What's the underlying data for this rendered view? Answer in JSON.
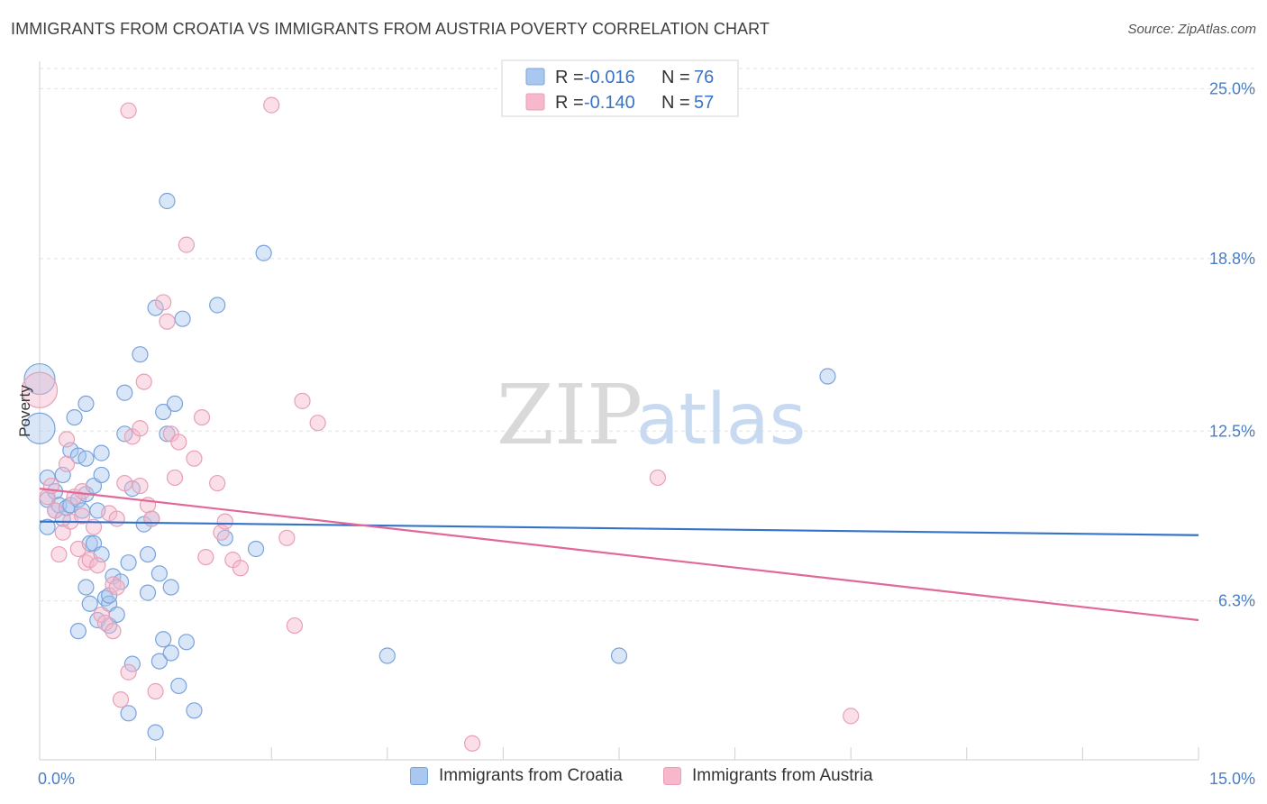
{
  "title": "IMMIGRANTS FROM CROATIA VS IMMIGRANTS FROM AUSTRIA POVERTY CORRELATION CHART",
  "source": "Source: ZipAtlas.com",
  "watermark": {
    "zip": "ZIP",
    "atlas": "atlas"
  },
  "colors": {
    "croatia_fill": "#a9c8f0",
    "croatia_stroke": "#7aa3db",
    "croatia_line": "#3573c9",
    "austria_fill": "#f7b8cb",
    "austria_stroke": "#e8a0b6",
    "austria_line": "#e0699a",
    "tick": "#4a7ec4",
    "grid": "#e3e3e3"
  },
  "legend": {
    "rows": [
      {
        "r_label": "R =",
        "r_value": "-0.016",
        "n_label": "N =",
        "n_value": "76"
      },
      {
        "r_label": "R =",
        "r_value": "-0.140",
        "n_label": "N =",
        "n_value": "57"
      }
    ]
  },
  "chart_data": {
    "type": "scatter",
    "title": "IMMIGRANTS FROM CROATIA VS IMMIGRANTS FROM AUSTRIA POVERTY CORRELATION CHART",
    "xlabel": "",
    "ylabel": "Poverty",
    "xlim": [
      0,
      15
    ],
    "ylim": [
      0.5,
      26
    ],
    "x_tick_labels": [
      "0.0%",
      "15.0%"
    ],
    "y_ticks": [
      6.3,
      12.5,
      18.8,
      25.0
    ],
    "y_tick_labels": [
      "6.3%",
      "12.5%",
      "18.8%",
      "25.0%"
    ],
    "grid": true,
    "legend_position": "top-center",
    "series": [
      {
        "name": "Immigrants from Croatia",
        "trend": {
          "x": [
            0,
            15
          ],
          "y": [
            9.2,
            8.7
          ]
        },
        "points": [
          {
            "x": 0.0,
            "y": 14.4,
            "s": 2
          },
          {
            "x": 0.0,
            "y": 12.6,
            "s": 2
          },
          {
            "x": 0.1,
            "y": 10.8
          },
          {
            "x": 0.1,
            "y": 10.0
          },
          {
            "x": 0.1,
            "y": 9.0
          },
          {
            "x": 0.2,
            "y": 10.3
          },
          {
            "x": 0.2,
            "y": 9.6
          },
          {
            "x": 0.25,
            "y": 9.8
          },
          {
            "x": 0.3,
            "y": 10.9
          },
          {
            "x": 0.3,
            "y": 9.3
          },
          {
            "x": 0.35,
            "y": 9.7
          },
          {
            "x": 0.4,
            "y": 11.8
          },
          {
            "x": 0.45,
            "y": 13.0
          },
          {
            "x": 0.4,
            "y": 9.8
          },
          {
            "x": 0.5,
            "y": 11.6
          },
          {
            "x": 0.5,
            "y": 10.0
          },
          {
            "x": 0.55,
            "y": 9.6
          },
          {
            "x": 0.6,
            "y": 10.2
          },
          {
            "x": 0.5,
            "y": 5.2
          },
          {
            "x": 0.6,
            "y": 11.5
          },
          {
            "x": 0.6,
            "y": 6.8
          },
          {
            "x": 0.65,
            "y": 6.2
          },
          {
            "x": 0.6,
            "y": 13.5
          },
          {
            "x": 0.65,
            "y": 8.4
          },
          {
            "x": 0.7,
            "y": 10.5
          },
          {
            "x": 0.75,
            "y": 9.6
          },
          {
            "x": 0.7,
            "y": 8.4
          },
          {
            "x": 0.75,
            "y": 5.6
          },
          {
            "x": 0.8,
            "y": 10.9
          },
          {
            "x": 0.8,
            "y": 8.0
          },
          {
            "x": 0.85,
            "y": 6.4
          },
          {
            "x": 0.8,
            "y": 11.7
          },
          {
            "x": 0.9,
            "y": 5.4
          },
          {
            "x": 0.9,
            "y": 6.2
          },
          {
            "x": 0.9,
            "y": 6.5
          },
          {
            "x": 0.95,
            "y": 7.2
          },
          {
            "x": 1.0,
            "y": 5.8
          },
          {
            "x": 1.05,
            "y": 7.0
          },
          {
            "x": 1.1,
            "y": 13.9
          },
          {
            "x": 1.1,
            "y": 12.4
          },
          {
            "x": 1.15,
            "y": 2.2
          },
          {
            "x": 1.15,
            "y": 7.7
          },
          {
            "x": 1.2,
            "y": 4.0
          },
          {
            "x": 1.2,
            "y": 10.4
          },
          {
            "x": 1.3,
            "y": 15.3
          },
          {
            "x": 1.35,
            "y": 9.1
          },
          {
            "x": 1.4,
            "y": 6.6
          },
          {
            "x": 1.4,
            "y": 8.0
          },
          {
            "x": 1.45,
            "y": 9.3
          },
          {
            "x": 1.5,
            "y": 1.5
          },
          {
            "x": 1.5,
            "y": 17.0
          },
          {
            "x": 1.55,
            "y": 4.1
          },
          {
            "x": 1.6,
            "y": 4.9
          },
          {
            "x": 1.55,
            "y": 7.3
          },
          {
            "x": 1.6,
            "y": 13.2
          },
          {
            "x": 1.65,
            "y": 12.4
          },
          {
            "x": 1.7,
            "y": 6.8
          },
          {
            "x": 1.7,
            "y": 4.4
          },
          {
            "x": 1.75,
            "y": 13.5
          },
          {
            "x": 1.65,
            "y": 20.9
          },
          {
            "x": 1.8,
            "y": 3.2
          },
          {
            "x": 1.85,
            "y": 16.6
          },
          {
            "x": 1.9,
            "y": 4.8
          },
          {
            "x": 2.0,
            "y": 2.3
          },
          {
            "x": 2.3,
            "y": 17.1
          },
          {
            "x": 2.4,
            "y": 8.6
          },
          {
            "x": 2.8,
            "y": 8.2
          },
          {
            "x": 2.9,
            "y": 19.0
          },
          {
            "x": 4.5,
            "y": 4.3
          },
          {
            "x": 7.5,
            "y": 4.3
          },
          {
            "x": 10.2,
            "y": 14.5
          }
        ]
      },
      {
        "name": "Immigrants from Austria",
        "trend": {
          "x": [
            0,
            15
          ],
          "y": [
            10.4,
            5.6
          ]
        },
        "points": [
          {
            "x": 0.0,
            "y": 14.0,
            "s": 2.3
          },
          {
            "x": 0.1,
            "y": 10.1
          },
          {
            "x": 0.15,
            "y": 10.5
          },
          {
            "x": 0.2,
            "y": 9.6
          },
          {
            "x": 0.25,
            "y": 8.0
          },
          {
            "x": 0.3,
            "y": 8.8
          },
          {
            "x": 0.35,
            "y": 12.2
          },
          {
            "x": 0.35,
            "y": 11.3
          },
          {
            "x": 0.4,
            "y": 9.2
          },
          {
            "x": 0.45,
            "y": 10.1
          },
          {
            "x": 0.5,
            "y": 8.2
          },
          {
            "x": 0.55,
            "y": 9.4
          },
          {
            "x": 0.6,
            "y": 7.7
          },
          {
            "x": 0.65,
            "y": 7.8
          },
          {
            "x": 0.7,
            "y": 9.0
          },
          {
            "x": 0.75,
            "y": 7.6
          },
          {
            "x": 0.8,
            "y": 5.8
          },
          {
            "x": 0.85,
            "y": 5.5
          },
          {
            "x": 0.9,
            "y": 9.5
          },
          {
            "x": 0.95,
            "y": 5.2
          },
          {
            "x": 0.95,
            "y": 6.9
          },
          {
            "x": 1.0,
            "y": 9.3
          },
          {
            "x": 1.05,
            "y": 2.7
          },
          {
            "x": 1.1,
            "y": 10.6
          },
          {
            "x": 1.15,
            "y": 3.7
          },
          {
            "x": 1.15,
            "y": 24.2
          },
          {
            "x": 1.2,
            "y": 12.3
          },
          {
            "x": 1.3,
            "y": 10.5
          },
          {
            "x": 1.3,
            "y": 12.6
          },
          {
            "x": 1.35,
            "y": 14.3
          },
          {
            "x": 1.4,
            "y": 9.8
          },
          {
            "x": 1.45,
            "y": 9.3
          },
          {
            "x": 1.5,
            "y": 3.0
          },
          {
            "x": 1.6,
            "y": 17.2
          },
          {
            "x": 1.65,
            "y": 16.5
          },
          {
            "x": 1.7,
            "y": 12.4
          },
          {
            "x": 1.75,
            "y": 10.8
          },
          {
            "x": 1.9,
            "y": 19.3
          },
          {
            "x": 2.0,
            "y": 11.5
          },
          {
            "x": 2.1,
            "y": 13.0
          },
          {
            "x": 2.15,
            "y": 7.9
          },
          {
            "x": 2.3,
            "y": 10.6
          },
          {
            "x": 2.35,
            "y": 8.8
          },
          {
            "x": 2.5,
            "y": 7.8
          },
          {
            "x": 2.6,
            "y": 7.5
          },
          {
            "x": 3.0,
            "y": 24.4
          },
          {
            "x": 3.2,
            "y": 8.6
          },
          {
            "x": 3.3,
            "y": 5.4
          },
          {
            "x": 3.4,
            "y": 13.6
          },
          {
            "x": 3.6,
            "y": 12.8
          },
          {
            "x": 5.6,
            "y": 1.1
          },
          {
            "x": 8.0,
            "y": 10.8
          },
          {
            "x": 10.5,
            "y": 2.1
          },
          {
            "x": 2.4,
            "y": 9.2
          },
          {
            "x": 1.8,
            "y": 12.1
          },
          {
            "x": 0.55,
            "y": 10.3
          },
          {
            "x": 1.0,
            "y": 6.8
          }
        ]
      }
    ]
  }
}
